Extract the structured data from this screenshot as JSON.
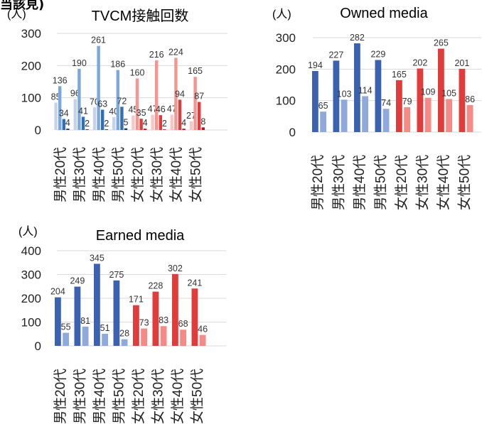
{
  "header_fragment": "当該見)",
  "chart_data": [
    {
      "type": "bar",
      "title": "TVCM接触回数",
      "unit_label": "(人)",
      "categories": [
        "男性20代",
        "男性30代",
        "男性40代",
        "男性50代",
        "女性20代",
        "女性30代",
        "女性40代",
        "女性50代"
      ],
      "ylim": [
        0,
        300
      ],
      "yticks": [
        0,
        100,
        200,
        300
      ],
      "grid": true,
      "series": [
        {
          "values": [
            85,
            96,
            70,
            40,
            45,
            47,
            47,
            27
          ],
          "colors": [
            "#c5d3ea",
            "#c5d3ea",
            "#c5d3ea",
            "#c5d3ea",
            "#f9c6c4",
            "#f9c6c4",
            "#f9c6c4",
            "#f9c6c4"
          ]
        },
        {
          "values": [
            136,
            190,
            261,
            186,
            160,
            216,
            224,
            165
          ],
          "colors": [
            "#7ba7dc",
            "#7ba7dc",
            "#7ba7dc",
            "#7ba7dc",
            "#f59491",
            "#f59491",
            "#f59491",
            "#f59491"
          ]
        },
        {
          "values": [
            34,
            41,
            63,
            72,
            35,
            46,
            94,
            87
          ],
          "colors": [
            "#2e6fb8",
            "#2e6fb8",
            "#2e6fb8",
            "#2e6fb8",
            "#e23b3b",
            "#e23b3b",
            "#e23b3b",
            "#e23b3b"
          ]
        },
        {
          "values": [
            4,
            2,
            2,
            5,
            4,
            2,
            4,
            8
          ],
          "colors": [
            "#17375e",
            "#17375e",
            "#17375e",
            "#17375e",
            "#b21a1a",
            "#b21a1a",
            "#b21a1a",
            "#b21a1a"
          ]
        }
      ]
    },
    {
      "type": "bar",
      "title": "Owned media",
      "unit_label": "(人)",
      "categories": [
        "男性20代",
        "男性30代",
        "男性40代",
        "男性50代",
        "女性20代",
        "女性30代",
        "女性40代",
        "女性50代"
      ],
      "ylim": [
        0,
        300
      ],
      "yticks": [
        0,
        100,
        200,
        300
      ],
      "grid": true,
      "series": [
        {
          "values": [
            194,
            227,
            282,
            229,
            165,
            202,
            265,
            201
          ],
          "colors": [
            "#3a62b0",
            "#3a62b0",
            "#3a62b0",
            "#3a62b0",
            "#e23b3b",
            "#e23b3b",
            "#e23b3b",
            "#e23b3b"
          ]
        },
        {
          "values": [
            65,
            103,
            114,
            74,
            79,
            109,
            105,
            86
          ],
          "colors": [
            "#8fa9dc",
            "#8fa9dc",
            "#8fa9dc",
            "#8fa9dc",
            "#f58a86",
            "#f58a86",
            "#f58a86",
            "#f58a86"
          ]
        }
      ]
    },
    {
      "type": "bar",
      "title": "Earned media",
      "unit_label": "(人)",
      "categories": [
        "男性20代",
        "男性30代",
        "男性40代",
        "男性50代",
        "女性20代",
        "女性30代",
        "女性40代",
        "女性50代"
      ],
      "ylim": [
        0,
        400
      ],
      "yticks": [
        0,
        100,
        200,
        300,
        400
      ],
      "grid": true,
      "series": [
        {
          "values": [
            204,
            249,
            345,
            275,
            171,
            228,
            302,
            241
          ],
          "colors": [
            "#3a62b0",
            "#3a62b0",
            "#3a62b0",
            "#3a62b0",
            "#e23b3b",
            "#e23b3b",
            "#e23b3b",
            "#e23b3b"
          ]
        },
        {
          "values": [
            55,
            81,
            51,
            28,
            73,
            83,
            68,
            46
          ],
          "colors": [
            "#8fa9dc",
            "#8fa9dc",
            "#8fa9dc",
            "#8fa9dc",
            "#f58a86",
            "#f58a86",
            "#f58a86",
            "#f58a86"
          ]
        }
      ]
    }
  ]
}
